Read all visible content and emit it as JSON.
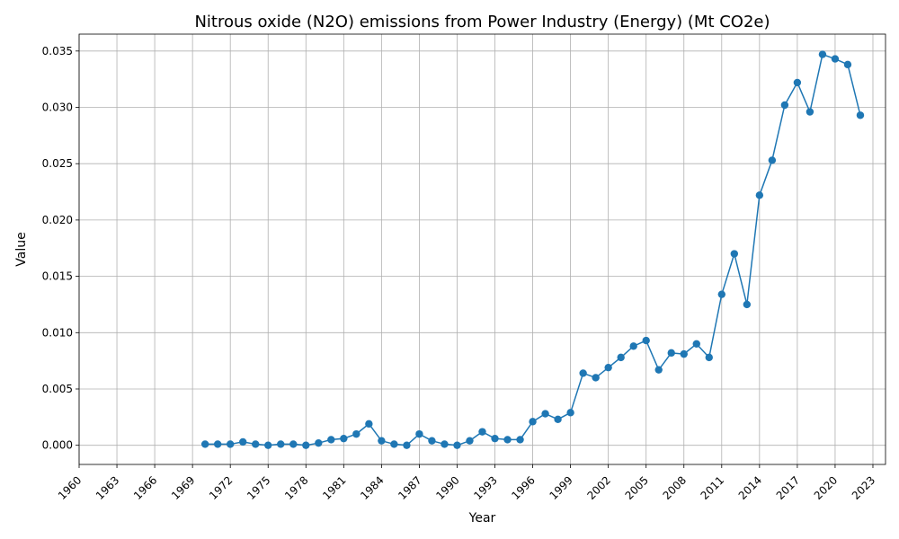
{
  "chart_data": {
    "type": "line",
    "title": "Nitrous oxide (N2O) emissions from Power Industry (Energy) (Mt CO2e)",
    "xlabel": "Year",
    "ylabel": "Value",
    "xlim": [
      1960,
      2024
    ],
    "ylim": [
      -0.0017,
      0.0365
    ],
    "xticks": [
      1960,
      1963,
      1966,
      1969,
      1972,
      1975,
      1978,
      1981,
      1984,
      1987,
      1990,
      1993,
      1996,
      1999,
      2002,
      2005,
      2008,
      2011,
      2014,
      2017,
      2020,
      2023
    ],
    "yticks": [
      0.0,
      0.005,
      0.01,
      0.015,
      0.02,
      0.025,
      0.03,
      0.035
    ],
    "ytick_labels": [
      "0.000",
      "0.005",
      "0.010",
      "0.015",
      "0.020",
      "0.025",
      "0.030",
      "0.035"
    ],
    "grid": true,
    "marker": "circle",
    "color": "#1f77b4",
    "x": [
      1970,
      1971,
      1972,
      1973,
      1974,
      1975,
      1976,
      1977,
      1978,
      1979,
      1980,
      1981,
      1982,
      1983,
      1984,
      1985,
      1986,
      1987,
      1988,
      1989,
      1990,
      1991,
      1992,
      1993,
      1994,
      1995,
      1996,
      1997,
      1998,
      1999,
      2000,
      2001,
      2002,
      2003,
      2004,
      2005,
      2006,
      2007,
      2008,
      2009,
      2010,
      2011,
      2012,
      2013,
      2014,
      2015,
      2016,
      2017,
      2018,
      2019,
      2020,
      2021,
      2022
    ],
    "y": [
      0.0001,
      0.0001,
      0.0001,
      0.0003,
      0.0001,
      0.0,
      0.0001,
      0.0001,
      0.0,
      0.0002,
      0.0005,
      0.0006,
      0.001,
      0.0019,
      0.0004,
      0.0001,
      0.0,
      0.001,
      0.0004,
      0.0001,
      0.0,
      0.0004,
      0.0012,
      0.0006,
      0.0005,
      0.0005,
      0.0021,
      0.0028,
      0.0023,
      0.0029,
      0.0064,
      0.006,
      0.0069,
      0.0078,
      0.0088,
      0.0093,
      0.0067,
      0.0082,
      0.0081,
      0.009,
      0.0078,
      0.0134,
      0.017,
      0.0125,
      0.0222,
      0.0253,
      0.0302,
      0.0322,
      0.0296,
      0.0347,
      0.0343,
      0.0338,
      0.0293
    ]
  }
}
